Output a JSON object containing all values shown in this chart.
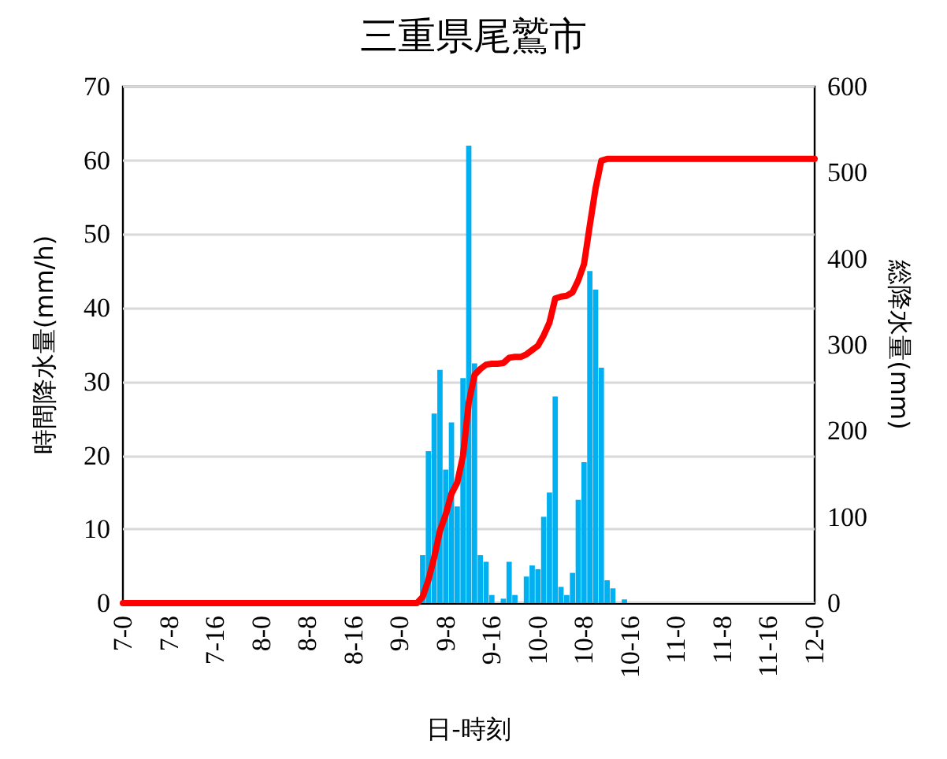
{
  "chart_data": {
    "type": "bar",
    "title": "三重県尾鷲市",
    "xlabel": "日-時刻",
    "ylabel": "時間降水量(mm/h)",
    "y2label": "総降水量(mm)",
    "categories": [
      "7-0",
      null,
      null,
      null,
      null,
      null,
      null,
      null,
      "7-8",
      null,
      null,
      null,
      null,
      null,
      null,
      null,
      "7-16",
      null,
      null,
      null,
      null,
      null,
      null,
      null,
      "8-0",
      null,
      null,
      null,
      null,
      null,
      null,
      null,
      "8-8",
      null,
      null,
      null,
      null,
      null,
      null,
      null,
      "8-16",
      null,
      null,
      null,
      null,
      null,
      null,
      null,
      "9-0",
      null,
      null,
      null,
      null,
      null,
      null,
      null,
      "9-8",
      null,
      null,
      null,
      null,
      null,
      null,
      null,
      "9-16",
      null,
      null,
      null,
      null,
      null,
      null,
      null,
      "10-0",
      null,
      null,
      null,
      null,
      null,
      null,
      null,
      "10-8",
      null,
      null,
      null,
      null,
      null,
      null,
      null,
      "10-16",
      null,
      null,
      null,
      null,
      null,
      null,
      null,
      "11-0",
      null,
      null,
      null,
      null,
      null,
      null,
      null,
      "11-8",
      null,
      null,
      null,
      null,
      null,
      null,
      null,
      "11-16",
      null,
      null,
      null,
      null,
      null,
      null,
      null,
      "12-0"
    ],
    "series": [
      {
        "color": "#00b0f0",
        "values": [
          0,
          0,
          0,
          0,
          0,
          0,
          0,
          0,
          0,
          0,
          0,
          0,
          0,
          0,
          0,
          0,
          0,
          0,
          0,
          0,
          0,
          0,
          0,
          0,
          0,
          0,
          0,
          0,
          0,
          0,
          0,
          0,
          0,
          0,
          0,
          0,
          0,
          0,
          0,
          0,
          0,
          0,
          0,
          0,
          0,
          0,
          0,
          0,
          0,
          0,
          0,
          0,
          6.5,
          20.6,
          25.7,
          31.6,
          18.1,
          24.5,
          13.1,
          30.5,
          62,
          32.5,
          6.5,
          5.6,
          1.1,
          0,
          0.6,
          5.6,
          1.1,
          0,
          3.6,
          5.1,
          4.6,
          11.7,
          15,
          28,
          2.2,
          1.1,
          4.1,
          14,
          19.1,
          45,
          42.5,
          31.9,
          3.1,
          2,
          0,
          0.5,
          0,
          0,
          0,
          0,
          0,
          0,
          0,
          0,
          0,
          0,
          0,
          0,
          0,
          0,
          0,
          0,
          0,
          0,
          0,
          0,
          0,
          0,
          0,
          0,
          0,
          0,
          0,
          0,
          0,
          0,
          0,
          0,
          0
        ]
      },
      {
        "type": "line",
        "axis": "y2",
        "color": "#ff0000",
        "values": [
          0,
          0,
          0,
          0,
          0,
          0,
          0,
          0,
          0,
          0,
          0,
          0,
          0,
          0,
          0,
          0,
          0,
          0,
          0,
          0,
          0,
          0,
          0,
          0,
          0,
          0,
          0,
          0,
          0,
          0,
          0,
          0,
          0,
          0,
          0,
          0,
          0,
          0,
          0,
          0,
          0,
          0,
          0,
          0,
          0,
          0,
          0,
          0,
          0,
          0,
          0,
          0,
          7,
          27,
          53,
          84,
          103,
          127,
          140,
          171,
          233,
          265,
          272,
          277,
          278,
          278,
          279,
          285,
          286,
          286,
          289,
          294,
          299,
          311,
          326,
          354,
          356,
          357,
          361,
          375,
          394,
          439,
          482,
          514,
          516,
          516,
          516,
          516,
          516,
          516,
          516,
          516,
          516,
          516,
          516,
          516,
          516,
          516,
          516,
          516,
          516,
          516,
          516,
          516,
          516,
          516,
          516,
          516,
          516,
          516,
          516,
          516,
          516,
          516,
          516,
          516,
          516,
          516,
          516,
          516,
          516
        ]
      }
    ],
    "ylim": [
      0,
      70
    ],
    "yticks": [
      0,
      10,
      20,
      30,
      40,
      50,
      60,
      70
    ],
    "y2lim": [
      0,
      600
    ],
    "y2ticks": [
      0,
      100,
      200,
      300,
      400,
      500,
      600
    ],
    "grid": "y",
    "marker": "none",
    "line_style": "solid"
  }
}
